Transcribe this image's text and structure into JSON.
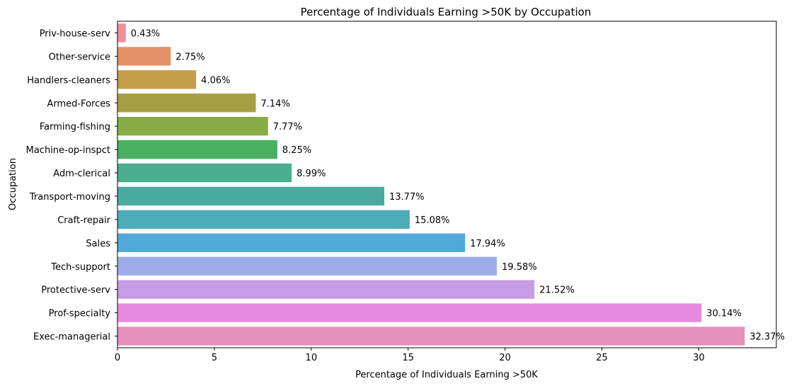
{
  "chart_data": {
    "type": "bar",
    "orientation": "horizontal",
    "title": "Percentage of Individuals Earning >50K by Occupation",
    "xlabel": "Percentage of Individuals Earning >50K",
    "ylabel": "Occupation",
    "xlim": [
      0,
      34
    ],
    "xticks": [
      0,
      5,
      10,
      15,
      20,
      25,
      30
    ],
    "grid": false,
    "legend": "none",
    "categories": [
      "Priv-house-serv",
      "Other-service",
      "Handlers-cleaners",
      "Armed-Forces",
      "Farming-fishing",
      "Machine-op-inspct",
      "Adm-clerical",
      "Transport-moving",
      "Craft-repair",
      "Sales",
      "Tech-support",
      "Protective-serv",
      "Prof-specialty",
      "Exec-managerial"
    ],
    "values": [
      0.43,
      2.75,
      4.06,
      7.14,
      7.77,
      8.25,
      8.99,
      13.77,
      15.08,
      17.94,
      19.58,
      21.52,
      30.14,
      32.37
    ],
    "value_labels": [
      "0.43%",
      "2.75%",
      "4.06%",
      "7.14%",
      "7.77%",
      "8.25%",
      "8.99%",
      "13.77%",
      "15.08%",
      "17.94%",
      "19.58%",
      "21.52%",
      "30.14%",
      "32.37%"
    ],
    "colors": [
      "#f08f9a",
      "#e49168",
      "#c59e4b",
      "#a89f44",
      "#87ac47",
      "#48b060",
      "#4aae8f",
      "#49aaa2",
      "#4babb9",
      "#51a9d8",
      "#9eacea",
      "#c79ce6",
      "#e88ae0",
      "#e78fbd"
    ]
  }
}
